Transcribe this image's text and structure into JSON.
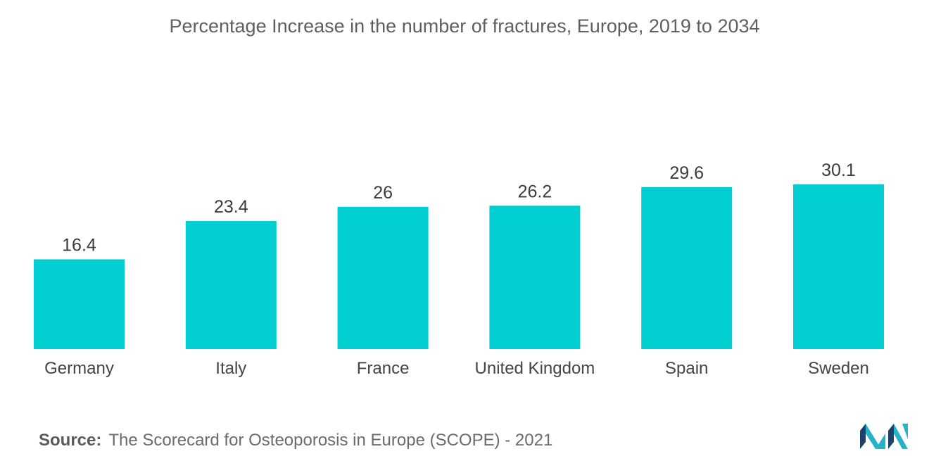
{
  "chart_data": {
    "type": "bar",
    "title": "Percentage Increase in the number of fractures, Europe, 2019 to 2034",
    "categories": [
      "Germany",
      "Italy",
      "France",
      "United Kingdom",
      "Spain",
      "Sweden"
    ],
    "values": [
      16.4,
      23.4,
      26,
      26.2,
      29.6,
      30.1
    ],
    "value_labels": [
      "16.4",
      "23.4",
      "26",
      "26.2",
      "29.6",
      "30.1"
    ],
    "xlabel": "",
    "ylabel": "",
    "ylim": [
      0,
      30.1
    ],
    "grid": false,
    "legend": "none",
    "bar_color": "#00CED1"
  },
  "source": {
    "prefix": "Source:",
    "text": "The Scorecard for Osteoporosis in Europe (SCOPE) - 2021"
  },
  "logo": {
    "icon": "mordor-intelligence-logo-icon",
    "colors": [
      "#1f3f6e",
      "#24b3c9"
    ]
  }
}
